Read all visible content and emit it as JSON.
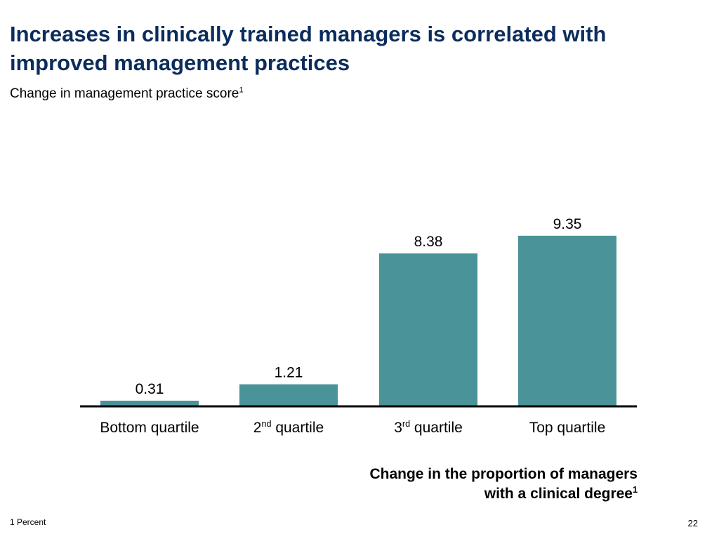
{
  "slide": {
    "title": "Increases in clinically trained managers is correlated with improved management practices",
    "subtitle": "Change in management practice score",
    "subtitle_sup": "1",
    "footnote": "1 Percent",
    "page_number": "22"
  },
  "chart_data": {
    "type": "bar",
    "title": "",
    "ylabel": "Change in management practice score",
    "xlabel_lines": [
      "Change in the proportion of managers",
      "with a clinical degree"
    ],
    "xlabel_sup": "1",
    "categories": [
      {
        "base": "Bottom quartile",
        "sup": "",
        "rest": ""
      },
      {
        "base": "2",
        "sup": "nd",
        "rest": "quartile"
      },
      {
        "base": "3",
        "sup": "rd",
        "rest": "quartile"
      },
      {
        "base": "Top quartile",
        "sup": "",
        "rest": ""
      }
    ],
    "values": [
      0.31,
      1.21,
      8.38,
      9.35
    ],
    "value_labels": [
      "0.31",
      "1.21",
      "8.38",
      "9.35"
    ],
    "ylim": [
      0,
      10
    ],
    "grid": false,
    "legend": "none",
    "bar_color": "#4a9399",
    "axis_color": "#000000",
    "title_color": "#0b2d5c"
  }
}
